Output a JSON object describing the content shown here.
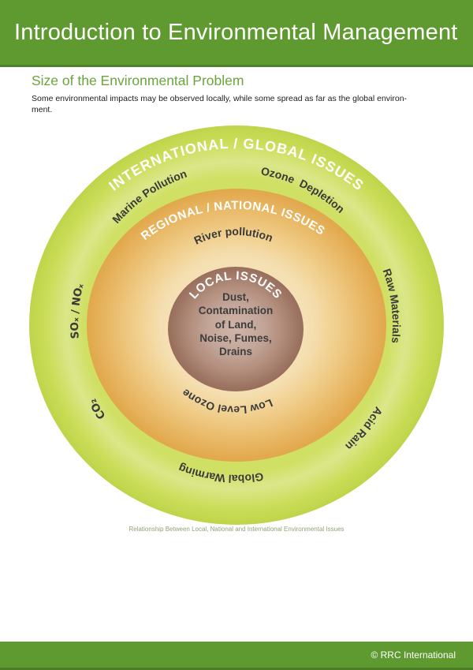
{
  "header": {
    "title": "Introduction to Environmental Management"
  },
  "section": {
    "heading": "Size of the Environmental Problem",
    "body_lines": [
      "Some environmental impacts may be observed locally, while some spread as far as the global environ-",
      "ment."
    ]
  },
  "diagram": {
    "rings": {
      "international": {
        "label": "INTERNATIONAL / GLOBAL ISSUES"
      },
      "regional": {
        "label": "REGIONAL / NATIONAL ISSUES"
      },
      "local": {
        "label": "LOCAL ISSUES"
      }
    },
    "issues": {
      "marine_pollution": "Marine Pollution",
      "ozone_depletion": "Ozone  Depletion",
      "river_pollution": "River pollution",
      "sox_nox": "SOₓ / NOₓ",
      "raw_materials": "Raw Materials",
      "acid_rain": "Acid Rain",
      "co2": "CO₂",
      "global_warming": "Global Warming",
      "low_level_ozone": "Low Level Ozone"
    },
    "center_lines": [
      "Dust,",
      "Contamination",
      "of Land,",
      "Noise, Fumes,",
      "Drains"
    ],
    "caption": "Relationship Between Local, National and International Environmental Issues",
    "colors": {
      "header_green": "#5f9a31",
      "heading_green": "#6ba43e",
      "ring_green": "#c8dc55",
      "ring_orange": "#e8b45c",
      "ring_brown": "#a98270",
      "label_dark": "#3a3a3a",
      "label_white": "#ffffff",
      "caption_green": "#92a377"
    }
  },
  "footer": {
    "copyright": "© RRC International"
  }
}
